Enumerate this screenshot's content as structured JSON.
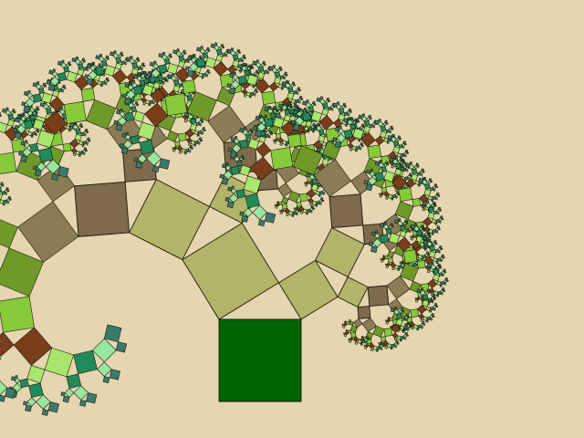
{
  "scene": {
    "subject": "pythagoras-tree-fractal",
    "background_color": "#e6d5b1",
    "trunk_color": "#006400",
    "stroke_color": "#1a1a0a",
    "depth": 11,
    "palette": [
      "#006400",
      "#b3b46a",
      "#b3b46a",
      "#7d6b4c",
      "#8a7c55",
      "#6f9a2a",
      "#86ca3a",
      "#7a3e1b",
      "#a8e66e",
      "#1f8a5a",
      "#98e6a2",
      "#3a7a6a"
    ]
  }
}
